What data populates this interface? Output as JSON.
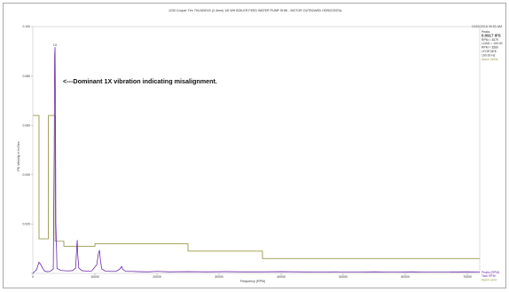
{
  "chart_data": {
    "type": "line",
    "title": "1230 Cooper Tire 794-NDE4S (2.4mm) 1/8 WH BOILER FEED WATER PUMP SHW - MOTOR OUTBOARD HORIZONTAL",
    "timestamp": "10/02/2018 09:53 AM",
    "readout": [
      "Peaks",
      "0.0917 IPS",
      "RPM = 3579",
      "LOAD = 100.00",
      "RPM = 3580",
      "LFOR DEE",
      "100.00 Hz"
    ],
    "alarm_legend": "Alarm Limits",
    "xlabel": "Frequency (RPM)",
    "ylabel": "PK Velocity in In/Sec",
    "xlim": [
      0,
      72000
    ],
    "ylim": [
      0,
      0.1
    ],
    "x_ticks": [
      0,
      10000,
      20000,
      30000,
      40000,
      50000,
      60000,
      70000
    ],
    "x_tick_labels": [
      "0",
      "10000",
      "20000",
      "30000",
      "40000",
      "50000",
      "60000",
      "70000"
    ],
    "y_ticks": [
      0,
      0.02,
      0.04,
      0.06,
      0.08,
      0.1
    ],
    "y_tick_labels": [
      "",
      "0.020",
      "0.040",
      "0.060",
      "0.080",
      "0.100"
    ],
    "annotation": "<---Dominant 1X vibration indicating misalignment.",
    "peak_marker": "1X",
    "bottom_right_legend": [
      "Peaks (RPM)",
      "Tach RPM",
      "Alarm Limit"
    ],
    "series": [
      {
        "color": "#6a2aa8",
        "x": [
          0,
          600,
          800,
          1000,
          1300,
          1600,
          1900,
          2300,
          2800,
          3300,
          3450,
          3520,
          3580,
          3640,
          3710,
          3900,
          4500,
          5500,
          6400,
          6900,
          7100,
          7160,
          7220,
          7400,
          7900,
          8800,
          9500,
          10300,
          10600,
          10740,
          10880,
          11100,
          11700,
          12500,
          13400,
          14000,
          14300,
          14500,
          15000,
          16000,
          17000,
          18500,
          20000,
          22000,
          25000,
          28000,
          31000,
          34000,
          37000,
          40000,
          43000,
          46000,
          49000,
          52000,
          55000,
          58000,
          61000,
          64000,
          67000,
          70000,
          72000
        ],
        "y": [
          0.0,
          0.0015,
          0.003,
          0.0045,
          0.0035,
          0.002,
          0.0009,
          0.0007,
          0.0008,
          0.0018,
          0.05,
          0.088,
          0.0917,
          0.07,
          0.02,
          0.002,
          0.0012,
          0.001,
          0.0011,
          0.0022,
          0.0115,
          0.0135,
          0.0085,
          0.0022,
          0.0011,
          0.0009,
          0.001,
          0.0035,
          0.0085,
          0.0092,
          0.0055,
          0.0018,
          0.0009,
          0.0008,
          0.0008,
          0.0017,
          0.0028,
          0.0016,
          0.0008,
          0.0008,
          0.0007,
          0.0006,
          0.0008,
          0.0006,
          0.0007,
          0.0006,
          0.0007,
          0.0006,
          0.0006,
          0.0007,
          0.0006,
          0.0005,
          0.0006,
          0.0005,
          0.0006,
          0.0005,
          0.0006,
          0.0005,
          0.0005,
          0.0006,
          0.0005
        ]
      },
      {
        "color": "#9a9a4a",
        "step": true,
        "x": [
          0,
          1000,
          1000,
          2500,
          2500,
          3600,
          3600,
          5000,
          5000,
          10000,
          10000,
          25000,
          25000,
          37000,
          37000,
          72000
        ],
        "y": [
          0.064,
          0.064,
          0.014,
          0.014,
          0.064,
          0.064,
          0.013,
          0.013,
          0.011,
          0.011,
          0.012,
          0.012,
          0.009,
          0.009,
          0.006,
          0.006
        ]
      }
    ]
  }
}
